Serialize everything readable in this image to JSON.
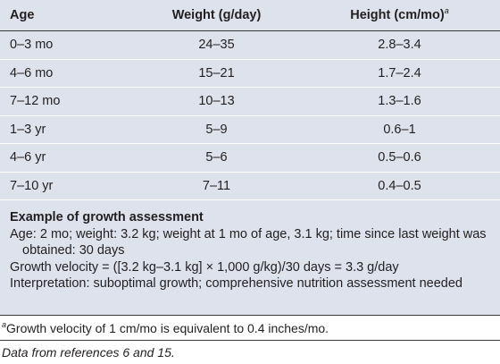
{
  "table": {
    "headers": {
      "age": "Age",
      "weight": "Weight (g/day)",
      "height": "Height (cm/mo)",
      "height_footnote": "a"
    },
    "rows": [
      {
        "age": "0–3 mo",
        "weight": "24–35",
        "height": "2.8–3.4"
      },
      {
        "age": "4–6 mo",
        "weight": "15–21",
        "height": "1.7–2.4"
      },
      {
        "age": "7–12 mo",
        "weight": "10–13",
        "height": "1.3–1.6"
      },
      {
        "age": "1–3 yr",
        "weight": "5–9",
        "height": "0.6–1"
      },
      {
        "age": "4–6 yr",
        "weight": "5–6",
        "height": "0.5–0.6"
      },
      {
        "age": "7–10 yr",
        "weight": "7–11",
        "height": "0.4–0.5"
      }
    ]
  },
  "example": {
    "title": "Example of growth assessment",
    "age_line": "Age: 2 mo; weight: 3.2 kg; weight at 1 mo of age, 3.1 kg; time since last weight was obtained: 30 days",
    "velocity_line": "Growth velocity = ([3.2 kg–3.1 kg] × 1,000 g/kg)/30 days = 3.3 g/day",
    "interpretation_line": "Interpretation: suboptimal growth; comprehensive nutrition assessment needed"
  },
  "footnotes": {
    "a_mark": "a",
    "a_text": "Growth velocity of 1 cm/mo is equivalent to 0.4 inches/mo.",
    "source": "Data from references 6 and 15."
  }
}
